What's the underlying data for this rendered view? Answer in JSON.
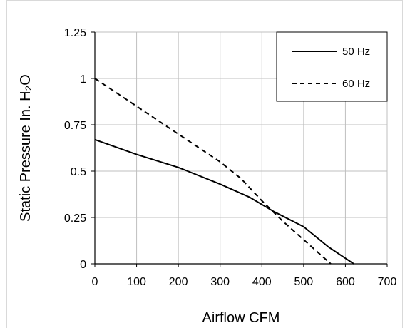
{
  "chart_data": {
    "type": "line",
    "title": "",
    "xlabel": "Airflow CFM",
    "ylabel": "Static Pressure In. H₂O",
    "xlim": [
      0,
      700
    ],
    "ylim": [
      0,
      1.25
    ],
    "x_ticks": [
      "0",
      "100",
      "200",
      "300",
      "400",
      "500",
      "600",
      "700"
    ],
    "y_ticks": [
      "0",
      "0.25",
      "0.5",
      "0.75",
      "1",
      "1.25"
    ],
    "grid": true,
    "legend_position": "top-right",
    "series": [
      {
        "name": "50 Hz",
        "line_style": "solid",
        "color": "#000000",
        "x": [
          0,
          100,
          200,
          300,
          370,
          430,
          500,
          560,
          620
        ],
        "y": [
          0.67,
          0.59,
          0.52,
          0.43,
          0.36,
          0.28,
          0.2,
          0.09,
          0
        ]
      },
      {
        "name": "60 Hz",
        "line_style": "dashed",
        "color": "#000000",
        "x": [
          0,
          100,
          200,
          300,
          350,
          400,
          450,
          500,
          565
        ],
        "y": [
          1.0,
          0.85,
          0.7,
          0.55,
          0.46,
          0.34,
          0.23,
          0.13,
          0
        ]
      }
    ]
  }
}
